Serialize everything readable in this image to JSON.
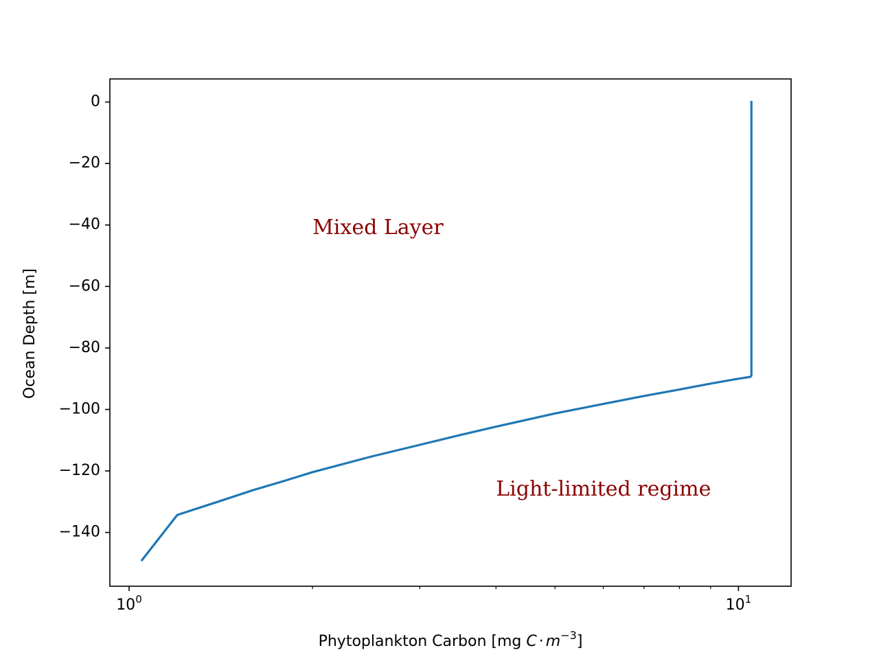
{
  "chart_data": {
    "type": "line",
    "title": "",
    "xlabel": "Phytoplankton Carbon [mg C·m⁻³]",
    "xlabel_parts": {
      "prefix": "Phytoplankton Carbon [mg ",
      "c": "C",
      "dot": "·",
      "m": "m",
      "exp": "−3",
      "suffix": "]"
    },
    "ylabel": "Ocean Depth [m]",
    "x_scale": "log",
    "xlim": [
      0.93,
      12.2
    ],
    "ylim": [
      -157.5,
      7.5
    ],
    "grid": false,
    "line_color": "#1f77b4",
    "x_major_ticks": [
      {
        "value": 1,
        "base": "10",
        "exp": "0"
      },
      {
        "value": 10,
        "base": "10",
        "exp": "1"
      }
    ],
    "x_minor_ticks": [
      2,
      3,
      4,
      5,
      6,
      7,
      8,
      9
    ],
    "y_ticks": [
      {
        "value": 0,
        "label": "0"
      },
      {
        "value": -20,
        "label": "−20"
      },
      {
        "value": -40,
        "label": "−40"
      },
      {
        "value": -60,
        "label": "−60"
      },
      {
        "value": -80,
        "label": "−80"
      },
      {
        "value": -100,
        "label": "−100"
      },
      {
        "value": -120,
        "label": "−120"
      },
      {
        "value": -140,
        "label": "−140"
      }
    ],
    "series": [
      {
        "x": [
          10.5,
          10.5,
          10.5,
          10.46,
          10.0,
          9.6,
          9.0,
          8.0,
          7.0,
          6.0,
          5.0,
          4.0,
          3.5,
          3.0,
          2.5,
          2.0,
          1.8,
          1.6,
          1.4,
          1.2,
          1.05
        ],
        "y": [
          0,
          -60,
          -89,
          -89.4,
          -90,
          -90.6,
          -91.6,
          -93.5,
          -95.6,
          -98.2,
          -101.3,
          -105.6,
          -108.3,
          -111.5,
          -115.3,
          -120.4,
          -123.2,
          -126.2,
          -130.0,
          -134.3,
          -149
        ]
      }
    ],
    "annotations": [
      {
        "text": "Mixed Layer",
        "x": 2.0,
        "y": -43,
        "color": "#8b0000"
      },
      {
        "text": "Light-limited regime",
        "x": 4.0,
        "y": -128,
        "color": "#8b0000"
      }
    ]
  }
}
